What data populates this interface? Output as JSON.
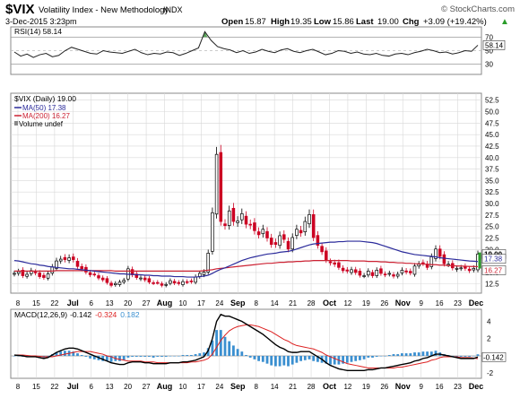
{
  "header": {
    "symbol": "$VIX",
    "name": "Volatility Index - New Methodology",
    "exchange": "INDX",
    "watermark": "© StockCharts.com",
    "date": "3-Dec-2015 3:23pm",
    "quote": {
      "open": "15.87",
      "high": "19.35",
      "low": "15.86",
      "last": "19.00",
      "chg": "+3.09 (+19.42%)"
    },
    "labels": {
      "open": "Open",
      "high": "High",
      "low": "Low",
      "last": "Last",
      "chg": "Chg"
    },
    "up_arrow": "▲"
  },
  "colors": {
    "up": "#000000",
    "down": "#cc0022",
    "ma50": "#2b2b9b",
    "ma200": "#cc2233",
    "rsi_fill": "#5aa55a",
    "macd_hist": "#3a8fd0",
    "signal": "#dd2222",
    "grid": "#d8d8d8"
  },
  "chart_data": [
    {
      "type": "line",
      "panel": "RSI",
      "legend": "RSI(14) 58.14",
      "last_label": "58.14",
      "ticks": [
        70,
        50,
        30
      ],
      "ylim": [
        15,
        85
      ],
      "levels": [
        70,
        30
      ],
      "values": [
        48,
        42,
        45,
        40,
        44,
        46,
        41,
        43,
        50,
        55,
        52,
        49,
        46,
        45,
        50,
        48,
        47,
        46,
        49,
        52,
        47,
        44,
        46,
        45,
        48,
        47,
        43,
        46,
        50,
        54,
        78,
        65,
        56,
        53,
        51,
        47,
        50,
        46,
        48,
        52,
        49,
        47,
        51,
        53,
        49,
        47,
        50,
        52,
        48,
        44,
        46,
        50,
        49,
        46,
        48,
        45,
        44,
        46,
        43,
        42,
        45,
        46,
        44,
        47,
        49,
        52,
        50,
        47,
        48,
        45,
        47,
        50,
        49,
        58
      ]
    },
    {
      "type": "candlestick",
      "panel": "price",
      "legend": {
        "title": "$VIX (Daily) 19.00",
        "ma50": "MA(50) 17.38",
        "ma200": "MA(200) 16.27",
        "volume": "Volume undef"
      },
      "ticks": [
        52.5,
        50.0,
        47.5,
        45.0,
        42.5,
        40.0,
        37.5,
        35.0,
        32.5,
        30.0,
        27.5,
        25.0,
        22.5,
        20.0,
        17.5,
        15.0,
        12.5
      ],
      "ylim": [
        10.5,
        54
      ],
      "last_label": "19.00",
      "ma50_label": "17.38",
      "ma200_label": "16.27",
      "x_labels": [
        "8",
        "15",
        "22",
        "Jul",
        "6",
        "13",
        "20",
        "27",
        "Aug",
        "10",
        "17",
        "24",
        "Sep",
        "8",
        "14",
        "21",
        "28",
        "Oct",
        "12",
        "19",
        "26",
        "Nov",
        "9",
        "16",
        "23",
        "Dec"
      ],
      "closes": [
        14.8,
        15.2,
        14.3,
        14.6,
        15.4,
        14.9,
        14.1,
        13.9,
        14.7,
        16.2,
        17.5,
        17.9,
        17.8,
        18.2,
        17.8,
        16.3,
        15.8,
        15.1,
        14.5,
        14.6,
        13.8,
        13.4,
        12.8,
        12.2,
        12.6,
        12.9,
        13.3,
        15.8,
        14.5,
        13.9,
        13.8,
        13.4,
        12.9,
        12.7,
        12.8,
        12.2,
        12.4,
        13.2,
        12.7,
        12.6,
        13.0,
        12.9,
        13.0,
        14.0,
        14.8,
        15.1,
        19.2,
        28.0,
        40.7,
        26.1,
        25.2,
        28.4,
        26.1,
        26.2,
        27.8,
        25.5,
        25.3,
        24.1,
        23.2,
        24.4,
        22.5,
        21.1,
        21.1,
        23.0,
        22.2,
        20.1,
        22.6,
        24.4,
        23.6,
        26.1,
        27.6,
        22.6,
        20.9,
        19.5,
        17.7,
        17.1,
        16.8,
        16.1,
        15.4,
        15.3,
        15.6,
        15.0,
        14.4,
        14.3,
        15.3,
        14.3,
        15.5,
        14.8,
        14.5,
        14.8,
        14.2,
        14.6,
        15.5,
        15.1,
        14.9,
        16.4,
        16.8,
        17.0,
        16.1,
        18.4,
        20.1,
        18.5,
        16.9,
        16.8,
        16.0,
        15.9,
        16.0,
        15.9,
        15.4,
        15.9,
        19.0
      ],
      "ma50": [
        17.6,
        17.5,
        17.3,
        17.1,
        16.9,
        16.8,
        16.6,
        16.5,
        16.3,
        16.2,
        16.1,
        16.0,
        15.9,
        15.8,
        15.8,
        15.7,
        15.6,
        15.5,
        15.4,
        15.3,
        15.2,
        15.1,
        15.0,
        14.9,
        14.8,
        14.7,
        14.7,
        14.6,
        14.6,
        14.5,
        14.5,
        14.4,
        14.4,
        14.3,
        14.3,
        14.2,
        14.2,
        14.2,
        14.1,
        14.1,
        14.1,
        14.0,
        14.0,
        14.0,
        14.1,
        14.2,
        14.4,
        14.8,
        15.3,
        15.7,
        16.0,
        16.4,
        16.8,
        17.2,
        17.6,
        17.9,
        18.2,
        18.4,
        18.6,
        18.8,
        19.0,
        19.1,
        19.2,
        19.4,
        19.5,
        19.6,
        19.8,
        20.1,
        20.4,
        20.7,
        21.0,
        21.2,
        21.3,
        21.4,
        21.5,
        21.6,
        21.6,
        21.7,
        21.7,
        21.8,
        21.8,
        21.8,
        21.8,
        21.7,
        21.6,
        21.5,
        21.3,
        21.0,
        20.7,
        20.4,
        20.1,
        19.8,
        19.5,
        19.3,
        19.1,
        18.9,
        18.8,
        18.7,
        18.6,
        18.5,
        18.4,
        18.2,
        18.1,
        18.0,
        17.9,
        17.8,
        17.7,
        17.6,
        17.5,
        17.45,
        17.38
      ],
      "ma200": [
        15.3,
        15.3,
        15.3,
        15.3,
        15.3,
        15.3,
        15.3,
        15.3,
        15.3,
        15.3,
        15.4,
        15.4,
        15.4,
        15.4,
        15.4,
        15.4,
        15.4,
        15.4,
        15.4,
        15.4,
        15.4,
        15.4,
        15.4,
        15.4,
        15.3,
        15.3,
        15.3,
        15.3,
        15.3,
        15.3,
        15.3,
        15.3,
        15.3,
        15.3,
        15.3,
        15.3,
        15.3,
        15.3,
        15.3,
        15.3,
        15.3,
        15.3,
        15.3,
        15.3,
        15.3,
        15.4,
        15.5,
        15.6,
        15.8,
        15.9,
        16.0,
        16.1,
        16.2,
        16.3,
        16.4,
        16.5,
        16.6,
        16.7,
        16.8,
        16.9,
        17.0,
        17.0,
        17.1,
        17.2,
        17.2,
        17.3,
        17.3,
        17.4,
        17.4,
        17.5,
        17.5,
        17.6,
        17.6,
        17.6,
        17.6,
        17.6,
        17.6,
        17.6,
        17.6,
        17.6,
        17.5,
        17.5,
        17.5,
        17.5,
        17.4,
        17.4,
        17.4,
        17.3,
        17.3,
        17.2,
        17.2,
        17.1,
        17.1,
        17.0,
        17.0,
        16.9,
        16.9,
        16.8,
        16.8,
        16.7,
        16.7,
        16.6,
        16.6,
        16.5,
        16.5,
        16.4,
        16.4,
        16.35,
        16.3,
        16.3,
        16.27
      ]
    },
    {
      "type": "macd",
      "panel": "MACD",
      "legend": {
        "name": "MACD(12,26,9)",
        "macd": "-0.142",
        "signal": "-0.324",
        "hist": "0.182"
      },
      "last_label": "-0.142",
      "ticks": [
        4,
        2,
        0,
        -2
      ],
      "ylim": [
        -2.6,
        5.4
      ],
      "macd": [
        0.1,
        0.05,
        0.0,
        -0.1,
        -0.1,
        -0.1,
        -0.2,
        -0.3,
        -0.2,
        0.1,
        0.4,
        0.6,
        0.8,
        0.9,
        0.9,
        0.8,
        0.6,
        0.4,
        0.2,
        0.0,
        -0.2,
        -0.4,
        -0.6,
        -0.8,
        -0.9,
        -1.0,
        -1.0,
        -0.8,
        -0.7,
        -0.7,
        -0.7,
        -0.8,
        -0.8,
        -0.9,
        -0.9,
        -0.9,
        -0.9,
        -0.8,
        -0.8,
        -0.8,
        -0.7,
        -0.7,
        -0.6,
        -0.5,
        -0.3,
        -0.1,
        0.6,
        2.0,
        4.0,
        4.8,
        4.6,
        4.6,
        4.4,
        4.2,
        4.0,
        3.7,
        3.4,
        3.1,
        2.8,
        2.5,
        2.1,
        1.7,
        1.3,
        1.0,
        0.8,
        0.5,
        0.4,
        0.4,
        0.5,
        0.5,
        0.5,
        0.2,
        -0.1,
        -0.4,
        -0.8,
        -1.1,
        -1.3,
        -1.5,
        -1.6,
        -1.7,
        -1.7,
        -1.7,
        -1.7,
        -1.7,
        -1.6,
        -1.6,
        -1.5,
        -1.4,
        -1.4,
        -1.3,
        -1.2,
        -1.1,
        -1.0,
        -0.9,
        -0.8,
        -0.6,
        -0.5,
        -0.3,
        -0.2,
        0.0,
        0.2,
        0.2,
        0.1,
        0.0,
        -0.1,
        -0.2,
        -0.3,
        -0.3,
        -0.3,
        -0.3,
        -0.142
      ],
      "signal": [
        0.1,
        0.1,
        0.1,
        0.05,
        0.0,
        0.0,
        -0.05,
        -0.1,
        -0.1,
        -0.1,
        0.0,
        0.1,
        0.2,
        0.3,
        0.4,
        0.5,
        0.5,
        0.5,
        0.5,
        0.4,
        0.3,
        0.2,
        0.0,
        -0.1,
        -0.3,
        -0.4,
        -0.5,
        -0.6,
        -0.6,
        -0.6,
        -0.6,
        -0.7,
        -0.7,
        -0.7,
        -0.8,
        -0.8,
        -0.8,
        -0.8,
        -0.8,
        -0.8,
        -0.8,
        -0.8,
        -0.7,
        -0.7,
        -0.6,
        -0.5,
        -0.3,
        0.2,
        1.0,
        1.8,
        2.4,
        2.9,
        3.2,
        3.4,
        3.5,
        3.6,
        3.6,
        3.5,
        3.4,
        3.2,
        3.0,
        2.8,
        2.5,
        2.2,
        1.9,
        1.7,
        1.4,
        1.2,
        1.1,
        1.0,
        0.9,
        0.8,
        0.6,
        0.4,
        0.1,
        -0.1,
        -0.3,
        -0.5,
        -0.7,
        -0.9,
        -1.0,
        -1.1,
        -1.2,
        -1.3,
        -1.4,
        -1.4,
        -1.4,
        -1.4,
        -1.4,
        -1.4,
        -1.4,
        -1.3,
        -1.3,
        -1.2,
        -1.1,
        -1.0,
        -0.9,
        -0.8,
        -0.7,
        -0.5,
        -0.4,
        -0.2,
        -0.1,
        -0.1,
        -0.1,
        -0.1,
        -0.2,
        -0.2,
        -0.2,
        -0.25,
        -0.324
      ]
    }
  ]
}
